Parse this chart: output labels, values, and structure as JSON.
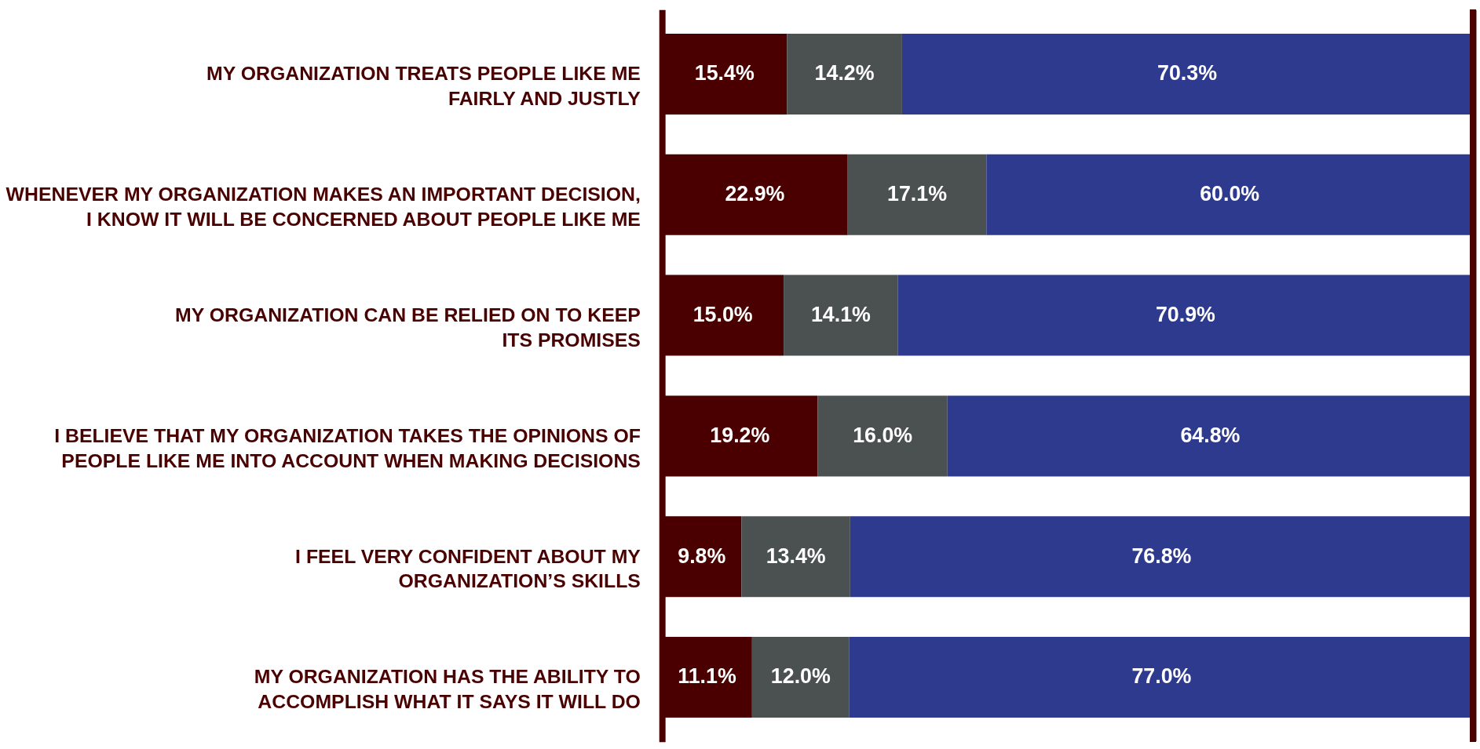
{
  "chart_data": {
    "type": "bar",
    "orientation": "horizontal",
    "stacked": true,
    "tick_labels": "y",
    "grid": false,
    "categories": [
      "MY ORGANIZATION TREATS PEOPLE LIKE ME\nFAIRLY AND JUSTLY",
      "WHENEVER MY ORGANIZATION MAKES AN IMPORTANT DECISION,\nI KNOW IT WILL BE CONCERNED ABOUT PEOPLE LIKE ME",
      "MY ORGANIZATION CAN BE RELIED ON TO KEEP\nITS PROMISES",
      "I BELIEVE THAT MY ORGANIZATION TAKES THE OPINIONS OF\nPEOPLE LIKE ME INTO ACCOUNT WHEN MAKING DECISIONS",
      "I FEEL VERY CONFIDENT ABOUT MY\nORGANIZATION’S SKILLS",
      "MY ORGANIZATION HAS THE ABILITY TO\nACCOMPLISH WHAT IT SAYS IT WILL DO"
    ],
    "xlim": [
      0,
      100
    ],
    "series": [
      {
        "color": "#4a0000",
        "values": [
          15.4,
          22.9,
          15.0,
          19.2,
          9.8,
          11.1
        ],
        "value_labels": [
          "15.4%",
          "22.9%",
          "15.0%",
          "19.2%",
          "9.8%",
          "11.1%"
        ]
      },
      {
        "color": "#4b5050",
        "values": [
          14.2,
          17.1,
          14.1,
          16.0,
          13.4,
          12.0
        ],
        "value_labels": [
          "14.2%",
          "17.1%",
          "14.1%",
          "16.0%",
          "13.4%",
          "12.0%"
        ]
      },
      {
        "color": "#2d3a8e",
        "values": [
          70.3,
          60.0,
          70.9,
          64.8,
          76.8,
          77.0
        ],
        "value_labels": [
          "70.3%",
          "60.0%",
          "70.9%",
          "64.8%",
          "76.8%",
          "77.0%"
        ]
      }
    ]
  }
}
